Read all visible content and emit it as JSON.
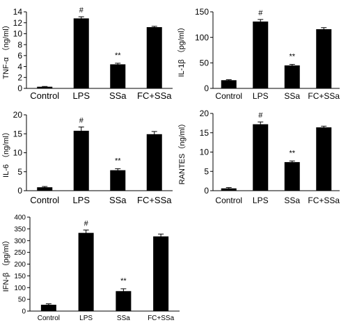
{
  "chart_data": [
    {
      "type": "bar",
      "categories": [
        "Control",
        "LPS",
        "SSa",
        "FC+SSa"
      ],
      "values": [
        0.3,
        12.8,
        4.4,
        11.2
      ],
      "errors": [
        0.05,
        0.3,
        0.2,
        0.15
      ],
      "annotations": [
        "",
        "#",
        "**",
        ""
      ],
      "ylabel": "TNF-α （ng/ml）",
      "ylim": [
        0,
        14
      ],
      "yticks": [
        0,
        2,
        4,
        6,
        8,
        10,
        12,
        14
      ],
      "grid": false,
      "bar_color": "#000000"
    },
    {
      "type": "bar",
      "categories": [
        "Control",
        "LPS",
        "SSa",
        "FC+SSa"
      ],
      "values": [
        16,
        131,
        45,
        116
      ],
      "errors": [
        1,
        4,
        2,
        3
      ],
      "annotations": [
        "",
        "#",
        "**",
        ""
      ],
      "ylabel": "IL-1β （pg/ml）",
      "ylim": [
        0,
        150
      ],
      "yticks": [
        0,
        50,
        100,
        150
      ],
      "grid": false,
      "bar_color": "#000000"
    },
    {
      "type": "bar",
      "categories": [
        "Control",
        "LPS",
        "SSa",
        "FC+SSa"
      ],
      "values": [
        0.9,
        15.8,
        5.4,
        14.9
      ],
      "errors": [
        0.2,
        1.0,
        0.4,
        0.7
      ],
      "annotations": [
        "",
        "#",
        "**",
        ""
      ],
      "ylabel": "IL-6 （ng/ml）",
      "ylim": [
        0,
        20
      ],
      "yticks": [
        0,
        5,
        10,
        15,
        20
      ],
      "grid": false,
      "bar_color": "#000000"
    },
    {
      "type": "bar",
      "categories": [
        "Control",
        "LPS",
        "SSa",
        "FC+SSa"
      ],
      "values": [
        0.6,
        17.2,
        7.4,
        16.4
      ],
      "errors": [
        0.2,
        0.6,
        0.3,
        0.3
      ],
      "annotations": [
        "",
        "#",
        "**",
        ""
      ],
      "ylabel": "RANTES（ng/ml）",
      "ylim": [
        0,
        20
      ],
      "yticks": [
        0,
        5,
        10,
        15,
        20
      ],
      "grid": false,
      "bar_color": "#000000"
    },
    {
      "type": "bar",
      "categories": [
        "Control",
        "LPS",
        "SSa",
        "FC+SSa"
      ],
      "values": [
        27,
        333,
        85,
        318
      ],
      "errors": [
        4,
        12,
        10,
        10
      ],
      "annotations": [
        "",
        "#",
        "**",
        ""
      ],
      "ylabel": "IFN-β （pg/ml）",
      "ylim": [
        0,
        400
      ],
      "yticks": [
        0,
        50,
        100,
        150,
        200,
        250,
        300,
        350,
        400
      ],
      "grid": false,
      "bar_color": "#000000"
    }
  ]
}
